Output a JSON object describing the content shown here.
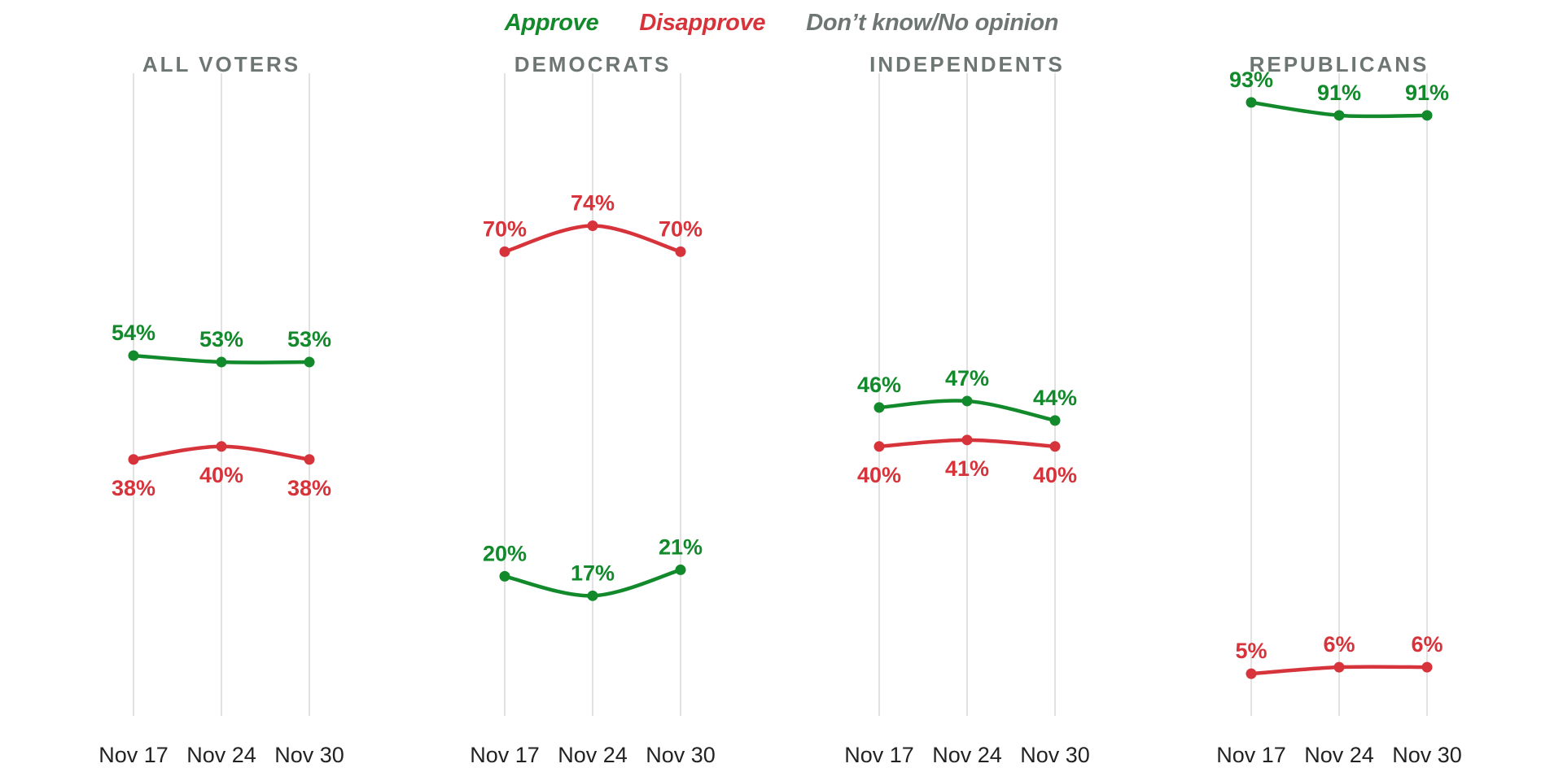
{
  "legend": {
    "approve": "Approve",
    "disapprove": "Disapprove",
    "no_opinion": "Don’t know/No opinion"
  },
  "colors": {
    "approve": "#128a2b",
    "disapprove": "#d7333b",
    "no_opinion": "#6e7673",
    "gridline": "#d9d9d9"
  },
  "chart_data": [
    {
      "type": "line",
      "title": "ALL VOTERS",
      "x": [
        "Nov 17",
        "Nov 24",
        "Nov 30"
      ],
      "ylim": [
        0,
        100
      ],
      "grid": true,
      "series": [
        {
          "name": "Approve",
          "key": "approve",
          "values": [
            54,
            53,
            53
          ],
          "labels": [
            "54%",
            "53%",
            "53%"
          ],
          "label_position": "above"
        },
        {
          "name": "Disapprove",
          "key": "disapprove",
          "values": [
            38,
            40,
            38
          ],
          "labels": [
            "38%",
            "40%",
            "38%"
          ],
          "label_position": "below"
        }
      ]
    },
    {
      "type": "line",
      "title": "DEMOCRATS",
      "x": [
        "Nov 17",
        "Nov 24",
        "Nov 30"
      ],
      "ylim": [
        0,
        100
      ],
      "grid": true,
      "series": [
        {
          "name": "Approve",
          "key": "approve",
          "values": [
            20,
            17,
            21
          ],
          "labels": [
            "20%",
            "17%",
            "21%"
          ],
          "label_position": "above"
        },
        {
          "name": "Disapprove",
          "key": "disapprove",
          "values": [
            70,
            74,
            70
          ],
          "labels": [
            "70%",
            "74%",
            "70%"
          ],
          "label_position": "above"
        }
      ]
    },
    {
      "type": "line",
      "title": "INDEPENDENTS",
      "x": [
        "Nov 17",
        "Nov 24",
        "Nov 30"
      ],
      "ylim": [
        0,
        100
      ],
      "grid": true,
      "series": [
        {
          "name": "Approve",
          "key": "approve",
          "values": [
            46,
            47,
            44
          ],
          "labels": [
            "46%",
            "47%",
            "44%"
          ],
          "label_position": "above"
        },
        {
          "name": "Disapprove",
          "key": "disapprove",
          "values": [
            40,
            41,
            40
          ],
          "labels": [
            "40%",
            "41%",
            "40%"
          ],
          "label_position": "below"
        }
      ]
    },
    {
      "type": "line",
      "title": "REPUBLICANS",
      "x": [
        "Nov 17",
        "Nov 24",
        "Nov 30"
      ],
      "ylim": [
        0,
        100
      ],
      "grid": true,
      "series": [
        {
          "name": "Approve",
          "key": "approve",
          "values": [
            93,
            91,
            91
          ],
          "labels": [
            "93%",
            "91%",
            "91%"
          ],
          "label_position": "above"
        },
        {
          "name": "Disapprove",
          "key": "disapprove",
          "values": [
            5,
            6,
            6
          ],
          "labels": [
            "5%",
            "6%",
            "6%"
          ],
          "label_position": "above"
        }
      ]
    }
  ]
}
